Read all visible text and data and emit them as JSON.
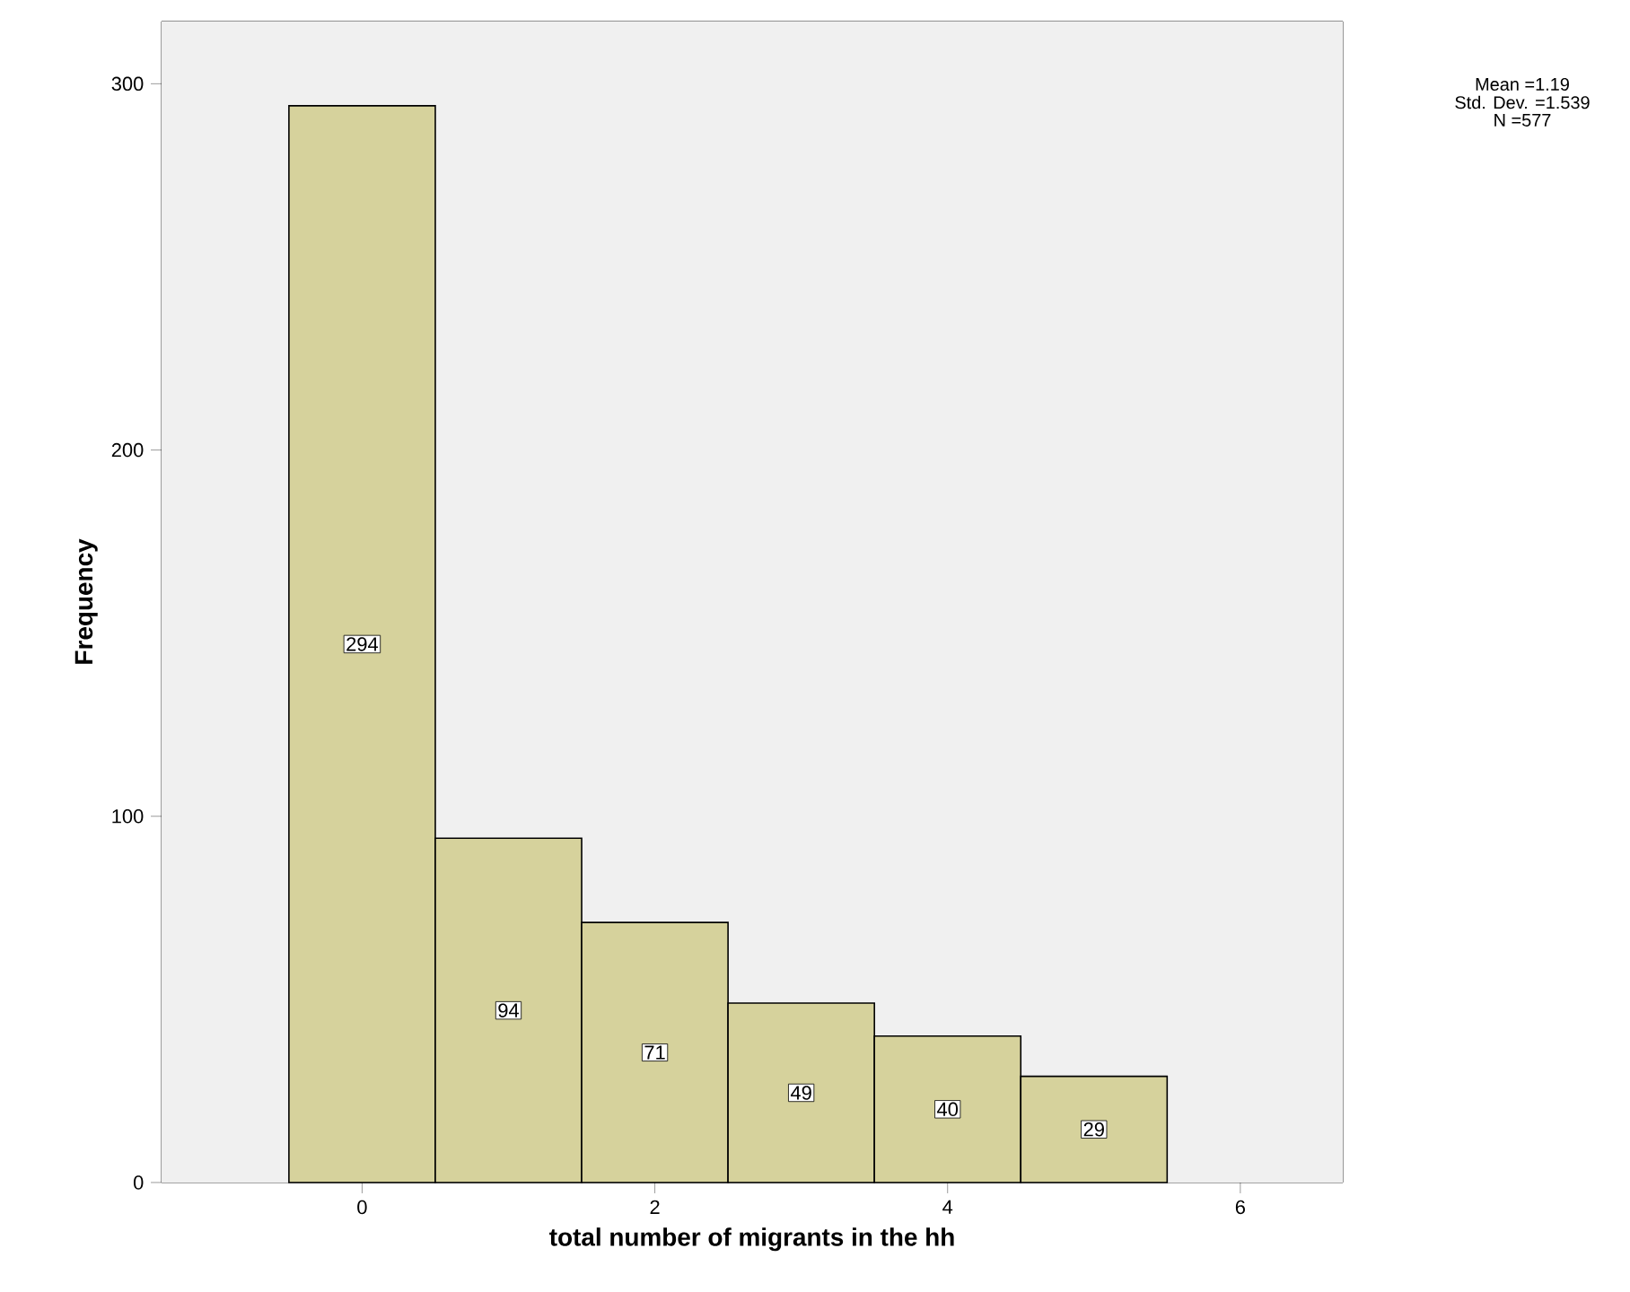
{
  "chart_data": {
    "type": "histogram",
    "xlabel": "total number of migrants in the hh",
    "ylabel": "Frequency",
    "bins": [
      -0.5,
      0.5,
      1.5,
      2.5,
      3.5,
      4.5,
      5.5
    ],
    "values": [
      294,
      94,
      71,
      49,
      40,
      29
    ],
    "color": "#d6d29c",
    "data_labels": true,
    "xlim": [
      -1.37,
      6.7
    ],
    "ylim": [
      0,
      317
    ],
    "xticks": [
      0,
      2,
      4,
      6
    ],
    "yticks": [
      0,
      100,
      200,
      300
    ],
    "grid": false,
    "annotations": [
      "Mean =1.19",
      "Std. Dev. =1.539",
      "N =577"
    ]
  }
}
